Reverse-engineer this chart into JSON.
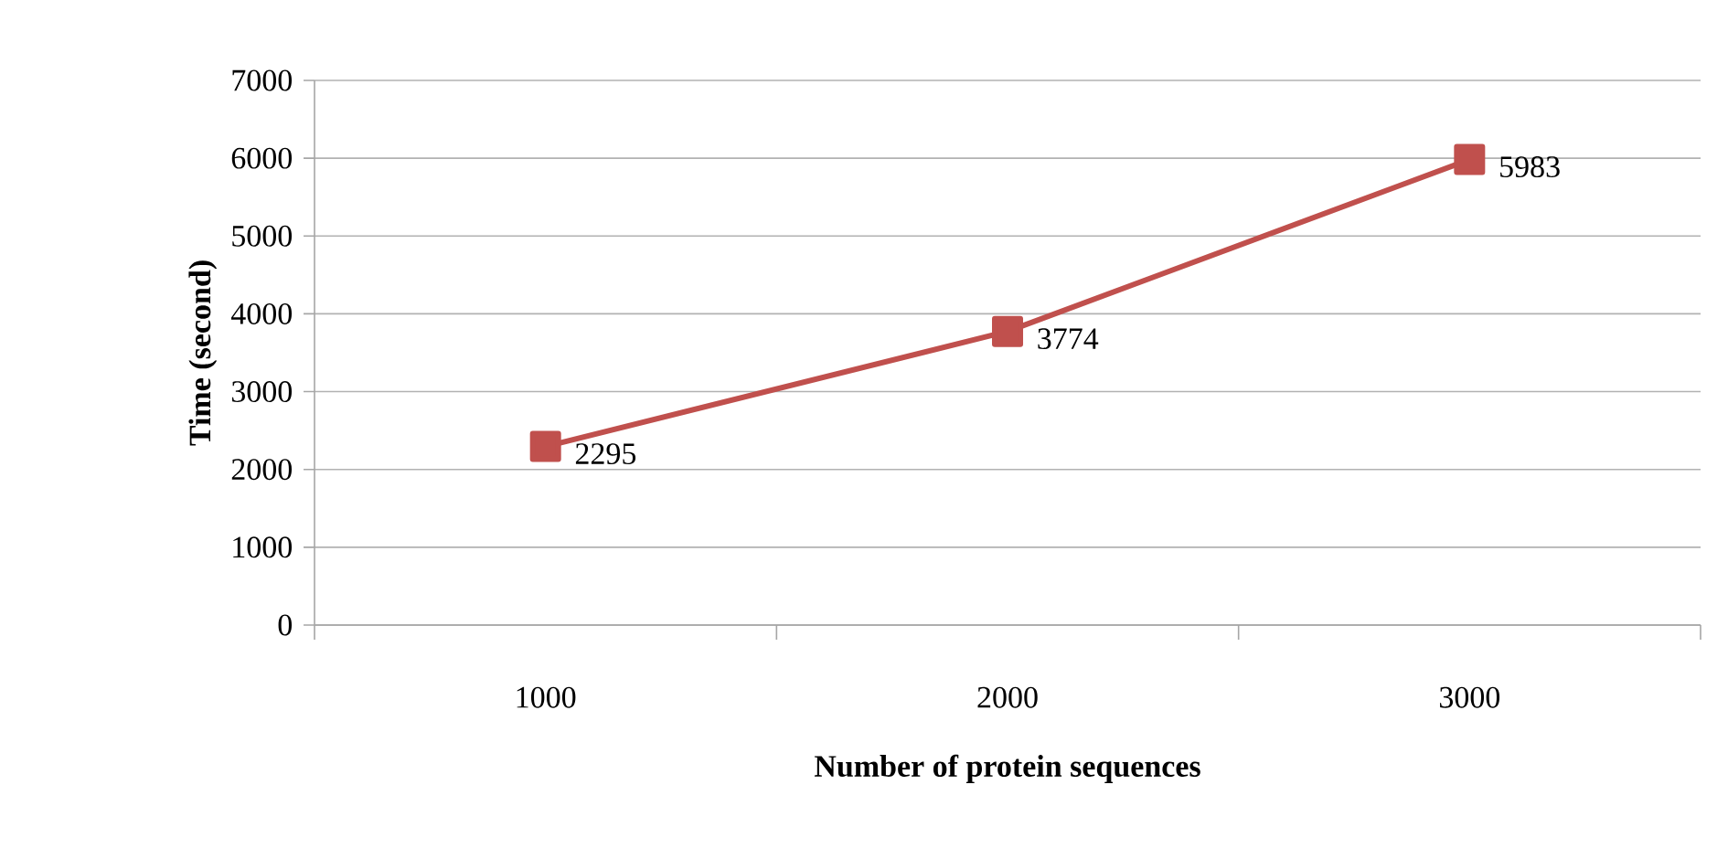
{
  "chart_data": {
    "type": "line",
    "xlabel": "Number of protein sequences",
    "ylabel": "Time (second)",
    "categories": [
      "1000",
      "2000",
      "3000"
    ],
    "series": [
      {
        "color": "#c0504d",
        "values": [
          2295,
          3774,
          5983
        ]
      }
    ],
    "ylim": [
      0,
      7000
    ],
    "yticks": [
      0,
      1000,
      2000,
      3000,
      4000,
      5000,
      6000,
      7000
    ],
    "grid": "y",
    "marker": "square",
    "line_style": "solid",
    "data_labels": true
  }
}
